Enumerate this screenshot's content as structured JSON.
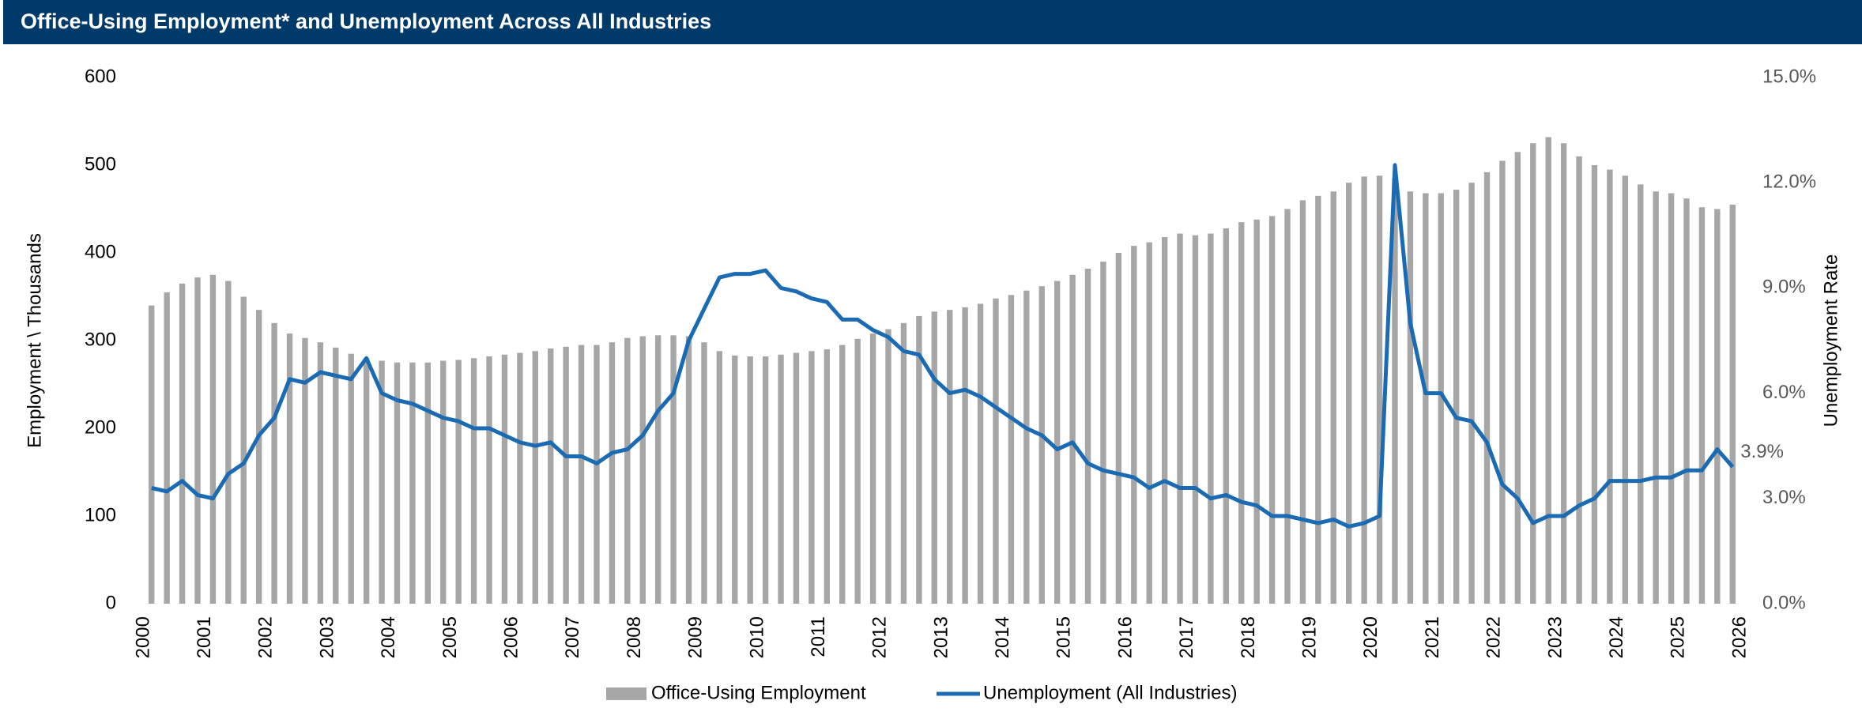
{
  "chart_data": {
    "type": "bar_line",
    "title": "Office-Using Employment* and Unemployment Across All Industries",
    "y_label": "Employment \\ Thousands",
    "y2_label": "Unemployment Rate",
    "x": [
      2000.125,
      2000.375,
      2000.625,
      2000.875,
      2001.125,
      2001.375,
      2001.625,
      2001.875,
      2002.125,
      2002.375,
      2002.625,
      2002.875,
      2003.125,
      2003.375,
      2003.625,
      2003.875,
      2004.125,
      2004.375,
      2004.625,
      2004.875,
      2005.125,
      2005.375,
      2005.625,
      2005.875,
      2006.125,
      2006.375,
      2006.625,
      2006.875,
      2007.125,
      2007.375,
      2007.625,
      2007.875,
      2008.125,
      2008.375,
      2008.625,
      2008.875,
      2009.125,
      2009.375,
      2009.625,
      2009.875,
      2010.125,
      2010.375,
      2010.625,
      2010.875,
      2011.125,
      2011.375,
      2011.625,
      2011.875,
      2012.125,
      2012.375,
      2012.625,
      2012.875,
      2013.125,
      2013.375,
      2013.625,
      2013.875,
      2014.125,
      2014.375,
      2014.625,
      2014.875,
      2015.125,
      2015.375,
      2015.625,
      2015.875,
      2016.125,
      2016.375,
      2016.625,
      2016.875,
      2017.125,
      2017.375,
      2017.625,
      2017.875,
      2018.125,
      2018.375,
      2018.625,
      2018.875,
      2019.125,
      2019.375,
      2019.625,
      2019.875,
      2020.125,
      2020.375,
      2020.625,
      2020.875,
      2021.125,
      2021.375,
      2021.625,
      2021.875,
      2022.125,
      2022.375,
      2022.625,
      2022.875,
      2023.125,
      2023.375,
      2023.625,
      2023.875,
      2024.125,
      2024.375,
      2024.625,
      2024.875,
      2025.125,
      2025.375,
      2025.625,
      2025.875
    ],
    "xlim": [
      2000,
      2026
    ],
    "xticks": [
      2000,
      2001,
      2002,
      2003,
      2004,
      2005,
      2006,
      2007,
      2008,
      2009,
      2010,
      2011,
      2012,
      2013,
      2014,
      2015,
      2016,
      2017,
      2018,
      2019,
      2020,
      2021,
      2022,
      2023,
      2024,
      2025,
      2026
    ],
    "ylim": [
      0,
      600
    ],
    "yticks": [
      0,
      100,
      200,
      300,
      400,
      500,
      600
    ],
    "y2lim": [
      0,
      15
    ],
    "y2ticks": [
      {
        "value": 0,
        "label": "0.0%"
      },
      {
        "value": 3,
        "label": "3.0%"
      },
      {
        "value": 6,
        "label": "6.0%"
      },
      {
        "value": 9,
        "label": "9.0%"
      },
      {
        "value": 12,
        "label": "12.0%"
      },
      {
        "value": 15,
        "label": "15.0%"
      }
    ],
    "series": [
      {
        "name": "Office-Using Employment",
        "type": "bar",
        "color": "#a6a6a6",
        "values": [
          340,
          355,
          365,
          372,
          375,
          368,
          350,
          335,
          320,
          308,
          303,
          298,
          292,
          285,
          280,
          277,
          275,
          275,
          275,
          277,
          278,
          280,
          282,
          284,
          286,
          288,
          291,
          293,
          295,
          295,
          298,
          303,
          305,
          306,
          306,
          305,
          298,
          288,
          283,
          282,
          282,
          284,
          286,
          288,
          290,
          295,
          302,
          308,
          313,
          320,
          328,
          333,
          335,
          338,
          342,
          348,
          352,
          357,
          362,
          368,
          375,
          382,
          390,
          400,
          408,
          412,
          418,
          422,
          420,
          422,
          428,
          435,
          438,
          442,
          450,
          460,
          465,
          470,
          480,
          487,
          488,
          485,
          470,
          468,
          468,
          472,
          480,
          492,
          505,
          515,
          525,
          532,
          525,
          510,
          500,
          495,
          488,
          478,
          470,
          468,
          462,
          452,
          450,
          455
        ]
      },
      {
        "name": "Unemployment (All Industries)",
        "type": "line",
        "axis": "y2",
        "color": "#1a6bb3",
        "values": [
          3.3,
          3.2,
          3.5,
          3.1,
          3.0,
          3.7,
          4.0,
          4.8,
          5.3,
          6.4,
          6.3,
          6.6,
          6.5,
          6.4,
          7.0,
          6.0,
          5.8,
          5.7,
          5.5,
          5.3,
          5.2,
          5.0,
          5.0,
          4.8,
          4.6,
          4.5,
          4.6,
          4.2,
          4.2,
          4.0,
          4.3,
          4.4,
          4.8,
          5.5,
          6.0,
          7.5,
          8.4,
          9.3,
          9.4,
          9.4,
          9.5,
          9.0,
          8.9,
          8.7,
          8.6,
          8.1,
          8.1,
          7.8,
          7.6,
          7.2,
          7.1,
          6.4,
          6.0,
          6.1,
          5.9,
          5.6,
          5.3,
          5.0,
          4.8,
          4.4,
          4.6,
          4.0,
          3.8,
          3.7,
          3.6,
          3.3,
          3.5,
          3.3,
          3.3,
          3.0,
          3.1,
          2.9,
          2.8,
          2.5,
          2.5,
          2.4,
          2.3,
          2.4,
          2.2,
          2.3,
          2.5,
          12.5,
          8.0,
          6.0,
          6.0,
          5.3,
          5.2,
          4.6,
          3.4,
          3.0,
          2.3,
          2.5,
          2.5,
          2.8,
          3.0,
          3.5,
          3.5,
          3.5,
          3.6,
          3.6,
          3.8,
          3.8,
          4.4,
          3.9
        ],
        "value_labels": [
          null,
          null,
          null,
          null,
          null,
          null,
          null,
          null,
          null,
          null,
          null,
          null,
          null,
          null,
          null,
          null,
          null,
          null,
          null,
          null,
          null,
          null,
          null,
          null,
          null,
          null,
          null,
          null,
          null,
          null,
          null,
          null,
          null,
          null,
          null,
          null,
          null,
          null,
          null,
          null,
          null,
          null,
          null,
          null,
          null,
          null,
          null,
          null,
          null,
          null,
          null,
          null,
          null,
          null,
          null,
          null,
          null,
          null,
          null,
          null,
          null,
          null,
          null,
          null,
          null,
          null,
          null,
          null,
          null,
          null,
          null,
          null,
          null,
          null,
          null,
          null,
          null,
          null,
          null,
          null,
          null,
          null,
          null,
          null,
          null,
          null,
          null,
          null,
          null,
          null,
          null,
          null,
          null,
          null,
          null,
          null,
          null,
          null,
          null,
          null,
          null,
          null,
          null,
          "3.9%"
        ]
      }
    ]
  }
}
